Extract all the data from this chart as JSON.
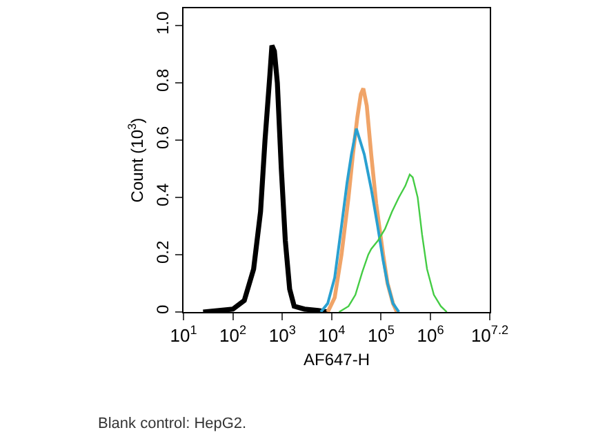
{
  "chart_data": {
    "type": "line",
    "xlabel": "AF647-H",
    "ylabel": "Count (10$^{3}$)",
    "log": "x",
    "grid": false,
    "marker": "none",
    "line_style": "solid",
    "xlim": [
      10,
      15848932
    ],
    "xticks": [
      {
        "value": 10,
        "label": "10$^{1}$"
      },
      {
        "value": 100,
        "label": "10$^{2}$"
      },
      {
        "value": 1000,
        "label": "10$^{3}$"
      },
      {
        "value": 10000,
        "label": "10$^{4}$"
      },
      {
        "value": 100000,
        "label": "10$^{5}$"
      },
      {
        "value": 1000000,
        "label": "10$^{6}$"
      },
      {
        "value": 15848932,
        "label": "10$^{7.2}$"
      }
    ],
    "ylim": [
      0,
      1.06
    ],
    "yticks": [
      0,
      0.2,
      0.4,
      0.6,
      0.8,
      {
        "value": 1,
        "label": "1.0"
      }
    ],
    "annotations": [
      "Blank control: HepG2."
    ],
    "series": [
      {
        "color": "#000000",
        "x": [
          25,
          100,
          170,
          263,
          363,
          447,
          562,
          617,
          692,
          794,
          955,
          1150,
          1410,
          1740,
          2820,
          5370,
          8320
        ],
        "values": [
          0,
          0.01,
          0.04,
          0.15,
          0.35,
          0.6,
          0.83,
          0.93,
          0.91,
          0.8,
          0.5,
          0.25,
          0.08,
          0.02,
          0.01,
          0.005,
          0
        ]
      },
      {
        "color": "#f0a468",
        "x": [
          8320,
          11500,
          15800,
          21900,
          26900,
          33100,
          38900,
          43700,
          51300,
          63100,
          79400,
          110000,
          135000,
          174000,
          209000
        ],
        "values": [
          0,
          0.05,
          0.2,
          0.4,
          0.55,
          0.68,
          0.76,
          0.78,
          0.72,
          0.55,
          0.38,
          0.2,
          0.1,
          0.03,
          0
        ]
      },
      {
        "color": "#2aa0d0",
        "x": [
          6030,
          8320,
          11500,
          15800,
          20400,
          25100,
          31600,
          37200,
          45700,
          63100,
          85100,
          110000,
          135000,
          174000,
          229000
        ],
        "values": [
          0,
          0.03,
          0.12,
          0.3,
          0.45,
          0.55,
          0.64,
          0.6,
          0.55,
          0.43,
          0.3,
          0.18,
          0.1,
          0.03,
          0
        ]
      },
      {
        "color": "#44cc44",
        "x": [
          14100,
          21900,
          30200,
          41700,
          55000,
          63100,
          87100,
          120000,
          166000,
          229000,
          309000,
          380000,
          437000,
          550000,
          676000,
          851000,
          1170000,
          1620000,
          2140000
        ],
        "values": [
          0,
          0.02,
          0.06,
          0.14,
          0.2,
          0.22,
          0.25,
          0.29,
          0.35,
          0.4,
          0.44,
          0.48,
          0.47,
          0.4,
          0.27,
          0.15,
          0.06,
          0.02,
          0
        ]
      }
    ]
  }
}
